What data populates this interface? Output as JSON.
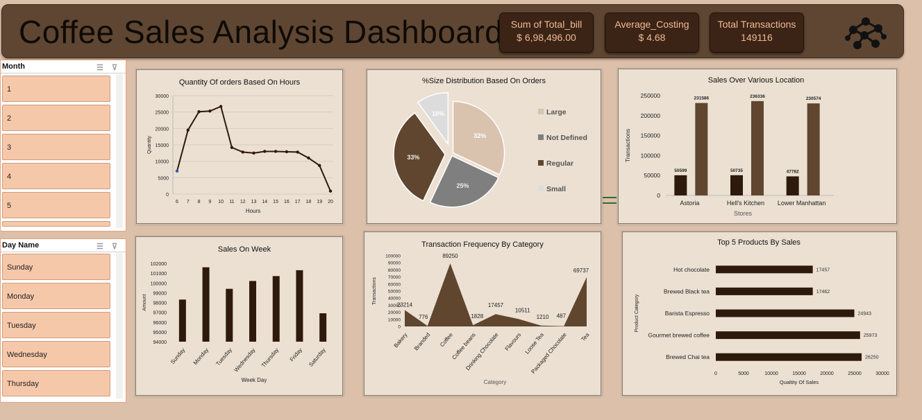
{
  "header": {
    "title": "Coffee Sales Analysis Dashboard",
    "network_icon": "network-icon"
  },
  "kpis": [
    {
      "label": "Sum of Total_bill",
      "value": "$ 6,98,496.00"
    },
    {
      "label": "Average_Costing",
      "value": "$ 4.68"
    },
    {
      "label": "Total Transactions",
      "value": "149116"
    }
  ],
  "slicers": {
    "month": {
      "title": "Month",
      "items": [
        "1",
        "2",
        "3",
        "4",
        "5"
      ]
    },
    "day": {
      "title": "Day Name",
      "items": [
        "Sunday",
        "Monday",
        "Tuesday",
        "Wednesday",
        "Thursday"
      ]
    }
  },
  "colors": {
    "dark_brown": "#2e1a0c",
    "mid_brown": "#60462f",
    "panel_bg": "#ebe0d2",
    "large": "#d9c2ae",
    "not_defined": "#7f7f7f",
    "regular": "#60462f",
    "small": "#dcdcdc"
  },
  "chart_data": [
    {
      "id": "hours",
      "type": "line",
      "title": "Quantity Of orders Based On Hours",
      "xlabel": "Hours",
      "ylabel": "Quantity",
      "x": [
        6,
        7,
        8,
        9,
        10,
        11,
        12,
        13,
        14,
        15,
        16,
        17,
        18,
        19,
        20
      ],
      "values": [
        7000,
        19500,
        25100,
        25300,
        26700,
        14200,
        12800,
        12500,
        13000,
        13000,
        12900,
        12800,
        11000,
        8700,
        900
      ],
      "ylim": [
        0,
        30000
      ],
      "yticks": [
        "0",
        "5000",
        "10000",
        "15000",
        "20000",
        "25000",
        "30000"
      ],
      "grid": true
    },
    {
      "id": "size",
      "type": "pie",
      "title": "%Size Distribution Based On Orders",
      "legend_position": "right",
      "labels": [
        "Large",
        "Not Defined",
        "Regular",
        "Small"
      ],
      "values": [
        32,
        25,
        33,
        10
      ],
      "value_labels": [
        "32%",
        "25%",
        "33%",
        "10%"
      ]
    },
    {
      "id": "location",
      "type": "bar",
      "title": "Sales Over Various Location",
      "xlabel": "Stores",
      "ylabel": "Transactions",
      "categories": [
        "Astoria",
        "Hell's Kitchen",
        "Lower Manhattan"
      ],
      "series": [
        {
          "values": [
            50599,
            50735,
            47782
          ]
        },
        {
          "values": [
            231586,
            236336,
            230574
          ]
        }
      ],
      "ylim": [
        0,
        250000
      ],
      "yticks": [
        "0",
        "50000",
        "100000",
        "150000",
        "200000",
        "250000"
      ]
    },
    {
      "id": "week",
      "type": "bar",
      "title": "Sales On Week",
      "xlabel": "Week Day",
      "ylabel": "Amount",
      "categories": [
        "Sunday",
        "Monday",
        "Tuesday",
        "Wednesday",
        "Thursday",
        "Friday",
        "Saturday"
      ],
      "values": [
        98300,
        101600,
        99400,
        100200,
        100700,
        101300,
        96900
      ],
      "ylim": [
        94000,
        102000
      ],
      "yticks": [
        "94000",
        "95000",
        "96000",
        "97000",
        "98000",
        "99000",
        "100000",
        "101000",
        "102000"
      ]
    },
    {
      "id": "category",
      "type": "area",
      "title": "Transaction Frequency By Category",
      "xlabel": "Category",
      "ylabel": "Transactions",
      "categories": [
        "Bakery",
        "Branded",
        "Coffee",
        "Coffee beans",
        "Drinking Chocolate",
        "Flavours",
        "Loose Tea",
        "Packaged Chocolate",
        "Tea"
      ],
      "values": [
        23214,
        776,
        89250,
        1828,
        17457,
        10511,
        1210,
        487,
        69737
      ],
      "value_labels": [
        "23214",
        "776",
        "89250",
        "1828",
        "17457",
        "10511",
        "1210",
        "487",
        "69737"
      ],
      "ylim": [
        0,
        100000
      ],
      "yticks": [
        "0",
        "10000",
        "20000",
        "30000",
        "40000",
        "50000",
        "60000",
        "70000",
        "80000",
        "90000",
        "100000"
      ]
    },
    {
      "id": "products",
      "type": "bar",
      "orientation": "horizontal",
      "title": "Top 5 Products By Sales",
      "xlabel": "Qualtity Of Sales",
      "ylabel": "Product Category",
      "categories": [
        "Hot chocolate",
        "Brewed Black tea",
        "Barista Espresso",
        "Gourmet brewed coffee",
        "Brewed Chai tea"
      ],
      "values": [
        17457,
        17462,
        24943,
        25973,
        26250
      ],
      "value_labels": [
        "17457",
        "17462",
        "24943",
        "25973",
        "26250"
      ],
      "xlim": [
        0,
        30000
      ],
      "xticks": [
        "0",
        "5000",
        "10000",
        "15000",
        "20000",
        "25000",
        "30000"
      ]
    }
  ]
}
